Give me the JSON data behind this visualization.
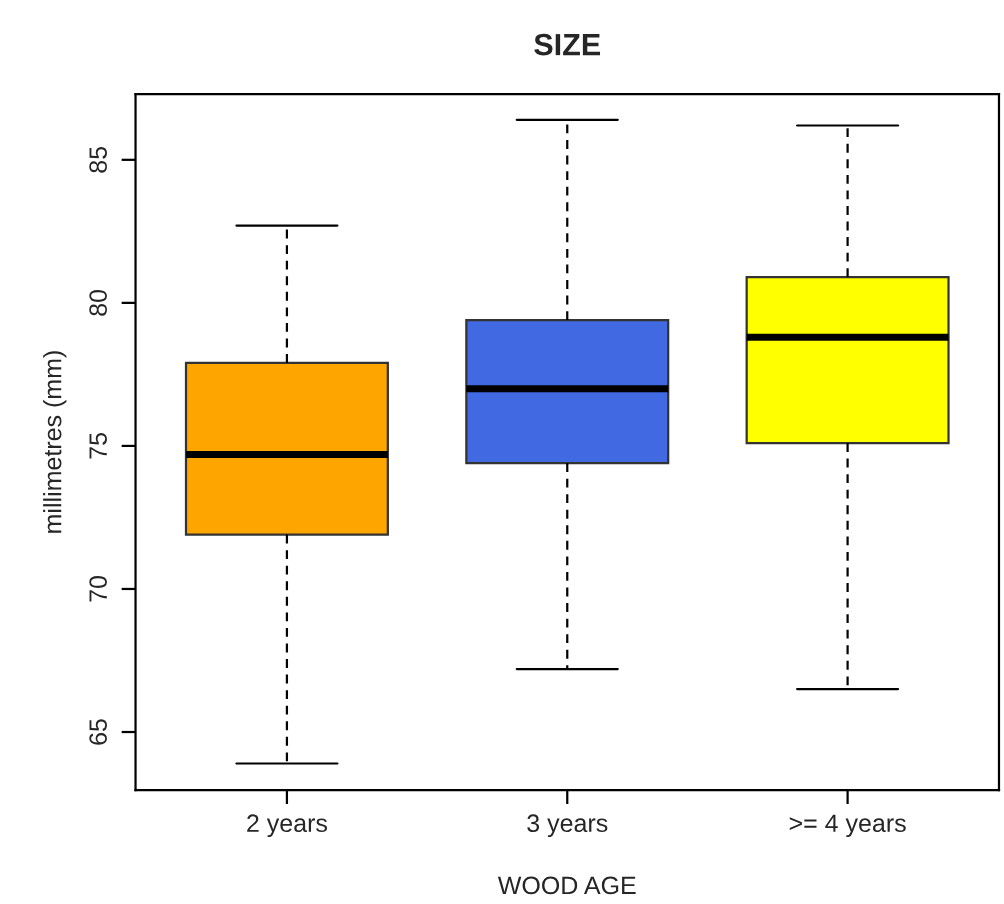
{
  "chart_data": {
    "type": "box",
    "title": "SIZE",
    "xlabel": "WOOD AGE",
    "ylabel": "millimetres (mm)",
    "categories": [
      "2 years",
      "3 years",
      ">= 4 years"
    ],
    "colors": [
      "#ffa500",
      "#4169e1",
      "#ffff00"
    ],
    "boxes": [
      {
        "low": 63.9,
        "q1": 71.9,
        "median": 74.7,
        "q3": 77.9,
        "high": 82.7
      },
      {
        "low": 67.2,
        "q1": 74.4,
        "median": 77.0,
        "q3": 79.4,
        "high": 86.4
      },
      {
        "low": 66.5,
        "q1": 75.1,
        "median": 78.8,
        "q3": 80.9,
        "high": 86.2
      }
    ],
    "ylim": [
      62.97,
      87.3
    ],
    "yticks": [
      65,
      70,
      75,
      80,
      85
    ],
    "grid": false,
    "legend": false
  }
}
